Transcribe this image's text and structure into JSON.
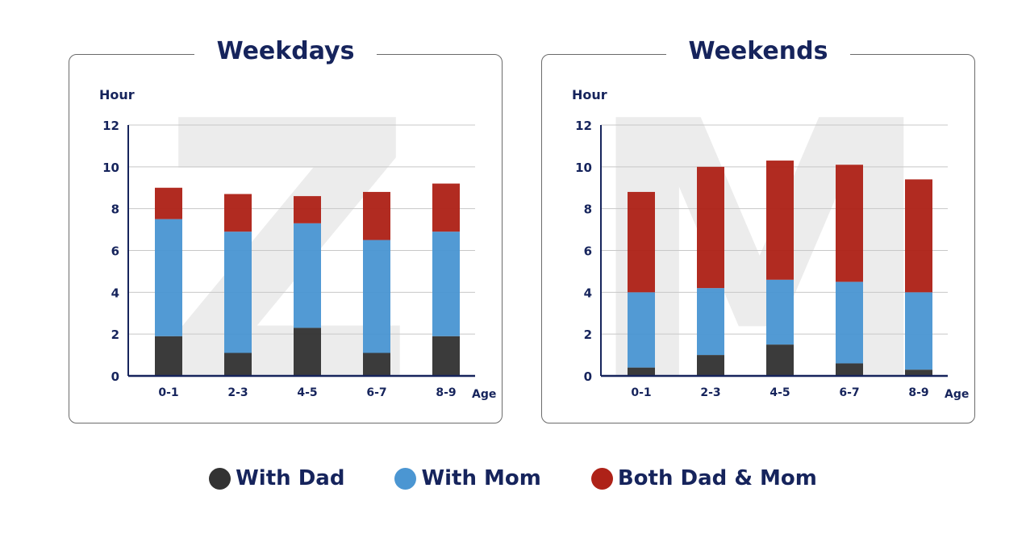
{
  "colors": {
    "dad": "#333333",
    "mom": "#4b96d2",
    "both": "#ae2218",
    "axis": "#16245c",
    "grid": "#c8c8c8",
    "watermark": "#ececec"
  },
  "legend": [
    {
      "name": "With Dad",
      "color": "#333333"
    },
    {
      "name": "With Mom",
      "color": "#4b96d2"
    },
    {
      "name": "Both Dad & Mom",
      "color": "#ae2218"
    }
  ],
  "chart_data": [
    {
      "type": "bar",
      "stacked": true,
      "title": "Weekdays",
      "ylabel": "Hour",
      "xlabel": "Age",
      "categories": [
        "0-1",
        "2-3",
        "4-5",
        "6-7",
        "8-9"
      ],
      "ylim": [
        0,
        12
      ],
      "yticks": [
        0,
        2,
        4,
        6,
        8,
        10,
        12
      ],
      "grid": true,
      "watermark": "Z",
      "series": [
        {
          "name": "With Dad",
          "values": [
            1.9,
            1.1,
            2.3,
            1.1,
            1.9
          ]
        },
        {
          "name": "With Mom",
          "values": [
            5.6,
            5.8,
            5.0,
            5.4,
            5.0
          ]
        },
        {
          "name": "Both Dad & Mom",
          "values": [
            1.5,
            1.8,
            1.3,
            2.3,
            2.3
          ]
        }
      ]
    },
    {
      "type": "bar",
      "stacked": true,
      "title": "Weekends",
      "ylabel": "Hour",
      "xlabel": "Age",
      "categories": [
        "0-1",
        "2-3",
        "4-5",
        "6-7",
        "8-9"
      ],
      "ylim": [
        0,
        12
      ],
      "yticks": [
        0,
        2,
        4,
        6,
        8,
        10,
        12
      ],
      "grid": true,
      "watermark": "M",
      "series": [
        {
          "name": "With Dad",
          "values": [
            0.4,
            1.0,
            1.5,
            0.6,
            0.3
          ]
        },
        {
          "name": "With Mom",
          "values": [
            3.6,
            3.2,
            3.1,
            3.9,
            3.7
          ]
        },
        {
          "name": "Both Dad & Mom",
          "values": [
            4.8,
            5.8,
            5.7,
            5.6,
            5.4
          ]
        }
      ]
    }
  ]
}
